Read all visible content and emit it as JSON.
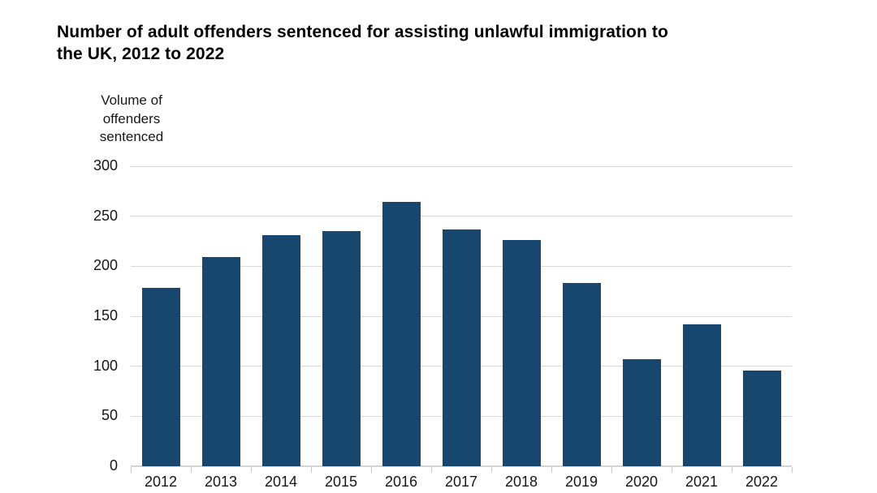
{
  "chart_data": {
    "type": "bar",
    "title": "Number of adult offenders sentenced for assisting unlawful immigration to\nthe UK, 2012 to 2022",
    "ylabel": "Volume of\noffenders\nsentenced",
    "xlabel": "",
    "categories": [
      "2012",
      "2013",
      "2014",
      "2015",
      "2016",
      "2017",
      "2018",
      "2019",
      "2020",
      "2021",
      "2022"
    ],
    "values": [
      178,
      209,
      231,
      235,
      264,
      237,
      226,
      183,
      107,
      142,
      96
    ],
    "ylim": [
      0,
      300
    ],
    "yticks": [
      0,
      50,
      100,
      150,
      200,
      250,
      300
    ],
    "grid": true,
    "legend": "none",
    "colors": {
      "bar": "#17466E",
      "gridline": "#d9d9d9",
      "axis_line": "#d4d4d4",
      "tick_mark": "#c9c9c9",
      "text": "#171717",
      "title_text": "#000000",
      "background": "#ffffff"
    }
  }
}
